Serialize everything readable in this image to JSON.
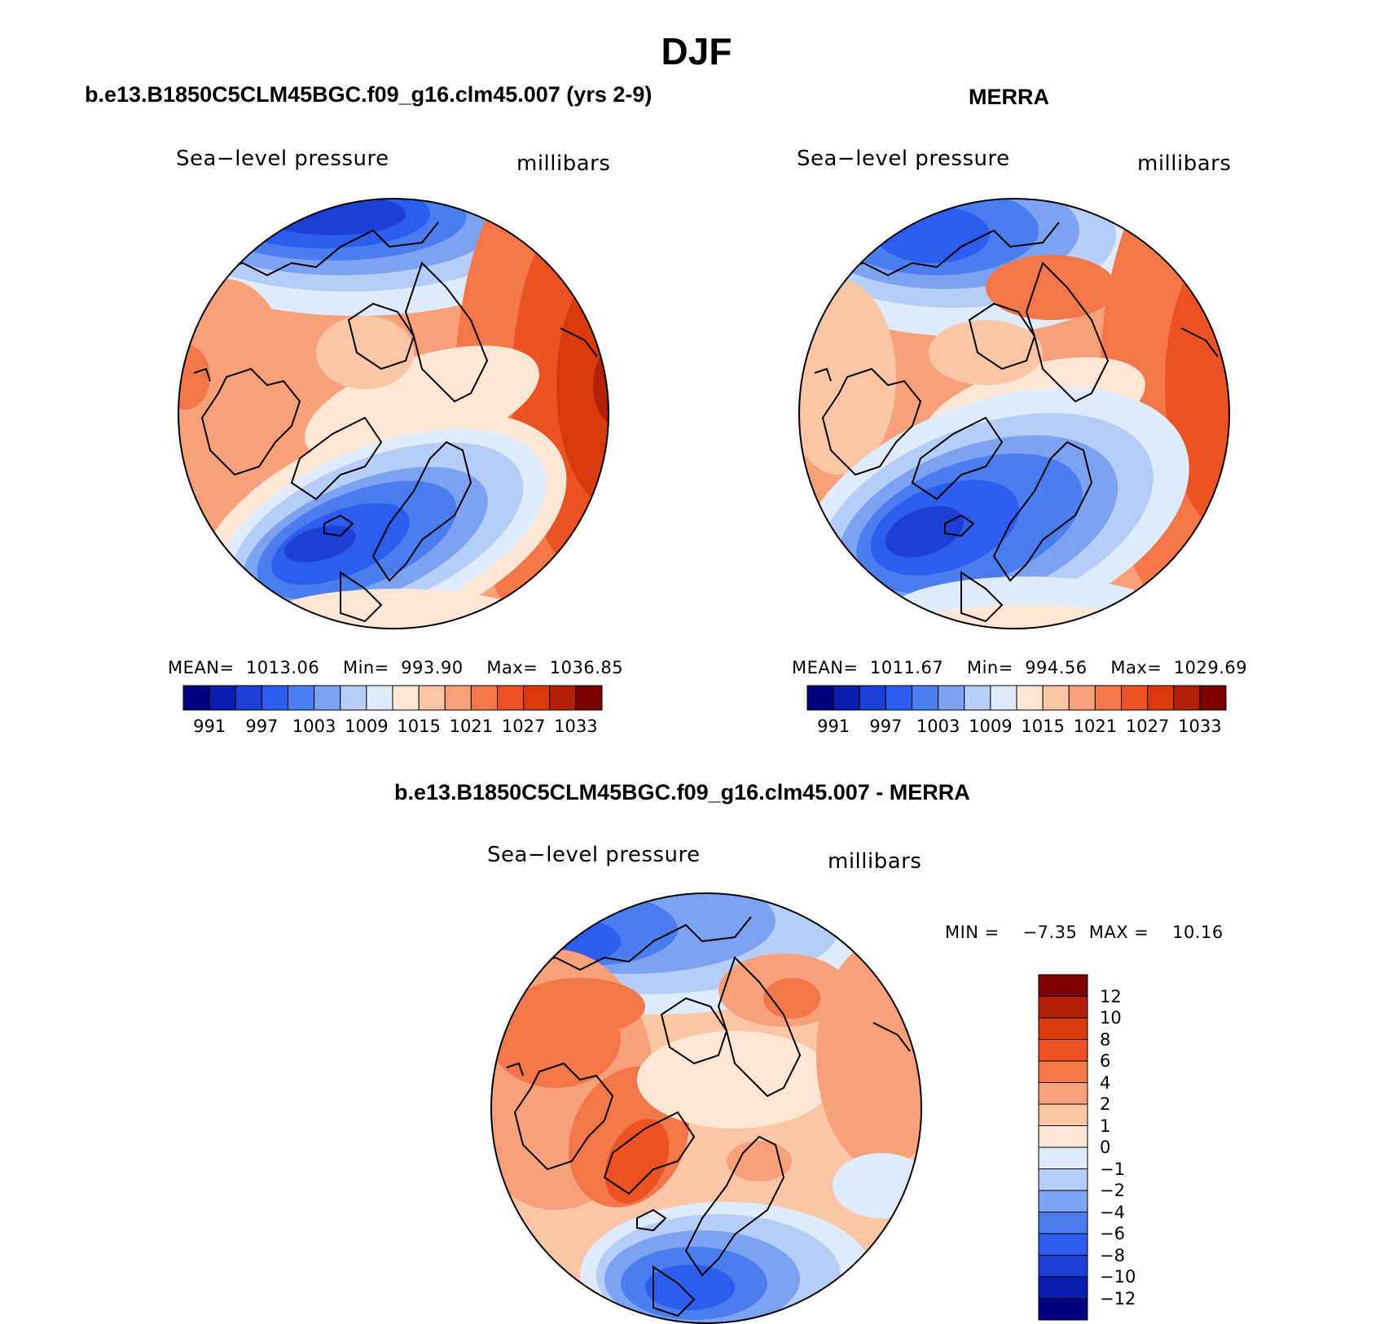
{
  "figure": {
    "title": "DJF"
  },
  "panels": [
    {
      "case_title": "b.e13.B1850C5CLM45BGC.f09_g16.clm45.007 (yrs 2-9)",
      "variable": "Sea−level pressure",
      "units": "millibars",
      "stats": {
        "mean_label": "MEAN=",
        "mean": "1013.06",
        "min_label": "Min=",
        "min": "993.90",
        "max_label": "Max=",
        "max": "1036.85"
      },
      "colorbar_ticks": [
        "991",
        "997",
        "1003",
        "1009",
        "1015",
        "1021",
        "1027",
        "1033"
      ]
    },
    {
      "case_title": "MERRA",
      "variable": "Sea−level pressure",
      "units": "millibars",
      "stats": {
        "mean_label": "MEAN=",
        "mean": "1011.67",
        "min_label": "Min=",
        "min": "994.56",
        "max_label": "Max=",
        "max": "1029.69"
      },
      "colorbar_ticks": [
        "991",
        "997",
        "1003",
        "1009",
        "1015",
        "1021",
        "1027",
        "1033"
      ]
    },
    {
      "case_title": "b.e13.B1850C5CLM45BGC.f09_g16.clm45.007 - MERRA",
      "variable": "Sea−level pressure",
      "units": "millibars",
      "stats": {
        "min_label": "MIN =",
        "min": "−7.35",
        "max_label": "MAX =",
        "max": "10.16"
      },
      "colorbar_ticks": [
        "12",
        "10",
        "8",
        "6",
        "4",
        "2",
        "1",
        "0",
        "−1",
        "−2",
        "−4",
        "−6",
        "−8",
        "−10",
        "−12"
      ]
    }
  ],
  "palettes": {
    "absolute": [
      "#00007f",
      "#0a1db0",
      "#1c3fd8",
      "#2c5cf0",
      "#4a7ef0",
      "#7ea2f2",
      "#b5cdf7",
      "#dfeafb",
      "#fde6d3",
      "#fbc6a6",
      "#f7a07a",
      "#f4774a",
      "#ec5223",
      "#d93a0c",
      "#b42008",
      "#7e0000"
    ],
    "difference": [
      "#00007f",
      "#0a1db0",
      "#1c3fd8",
      "#2c5cf0",
      "#4a7ef0",
      "#7ea2f2",
      "#b5cdf7",
      "#dfeafb",
      "#fde6d3",
      "#fbc6a6",
      "#f7a07a",
      "#f4774a",
      "#ec5223",
      "#d93a0c",
      "#b42008",
      "#7e0000"
    ]
  }
}
